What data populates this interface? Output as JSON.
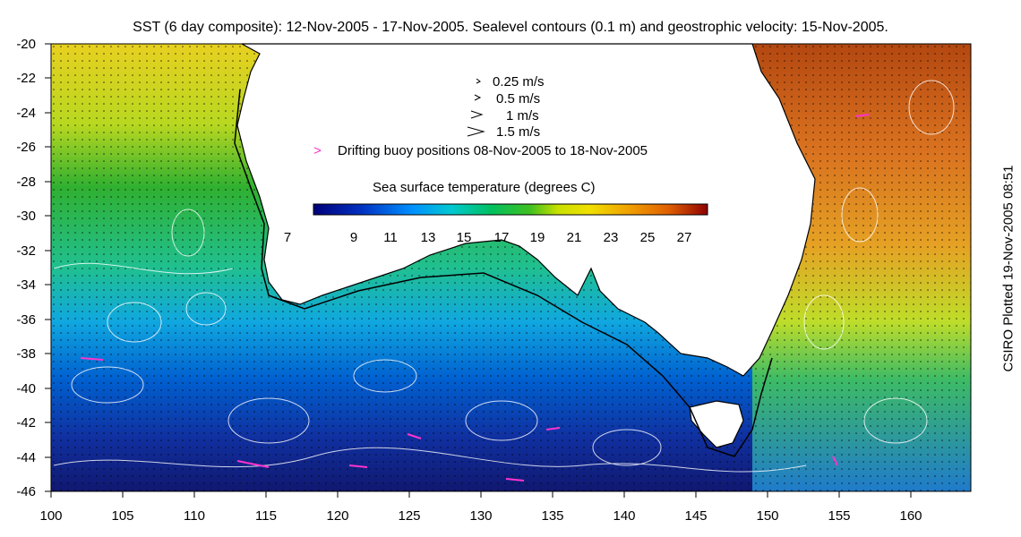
{
  "title": "SST (6 day composite): 12-Nov-2005 - 17-Nov-2005. Sealevel contours (0.1 m) and geostrophic velocity: 15-Nov-2005.",
  "side_label": "CSIRO Plotted 19-Nov-2005 08:51",
  "axes": {
    "lat_ticks": [
      "-20",
      "-22",
      "-24",
      "-26",
      "-28",
      "-30",
      "-32",
      "-34",
      "-36",
      "-38",
      "-40",
      "-42",
      "-44",
      "-46"
    ],
    "lon_ticks": [
      "100",
      "105",
      "110",
      "115",
      "120",
      "125",
      "130",
      "135",
      "140",
      "145",
      "150",
      "155",
      "160"
    ]
  },
  "velocity_legend": [
    {
      "label": "0.25 m/s"
    },
    {
      "label": "0.5 m/s"
    },
    {
      "label": "1 m/s"
    },
    {
      "label": "1.5 m/s"
    }
  ],
  "buoy_legend": {
    "symbol": ">",
    "label": "Drifting buoy positions 08-Nov-2005 to 18-Nov-2005",
    "color": "#ff33cc"
  },
  "colorbar": {
    "title": "Sea surface temperature (degrees C)",
    "ticks": [
      "7",
      "9",
      "11",
      "13",
      "15",
      "17",
      "19",
      "21",
      "23",
      "25",
      "27"
    ]
  }
}
